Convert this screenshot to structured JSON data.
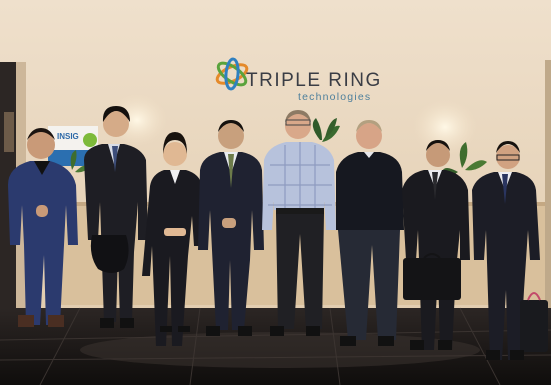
{
  "scene": {
    "description_icons": [
      "logo-icon"
    ],
    "colors": {
      "wall": "#ecdcc6",
      "floor": "#1a1716",
      "logo_text": "#3a3d45",
      "logo_sub": "#4d7f9c"
    }
  },
  "logo": {
    "name": "TRIPLE RING",
    "tagline": "technologies"
  },
  "poster": {
    "text": "INSIG"
  }
}
